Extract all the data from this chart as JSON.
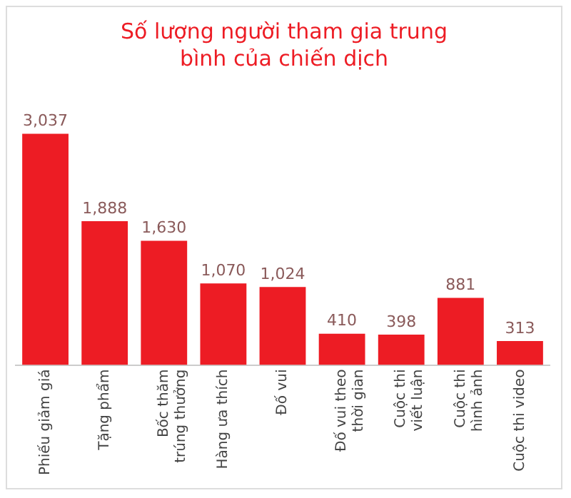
{
  "chart_data": {
    "type": "bar",
    "title": "Số lượng người tham gia trung bình của chiến dịch",
    "categories": [
      "Phiếu giảm giá",
      "Tặng phẩm",
      "Bốc thăm trúng thưởng",
      "Hàng ưa thích",
      "Đố vui",
      "Đố vui theo thời gian",
      "Cuộc thi viết luận",
      "Cuộc thi hình ảnh",
      "Cuộc thi video"
    ],
    "values": [
      3037,
      1888,
      1630,
      1070,
      1024,
      410,
      398,
      881,
      313
    ],
    "value_labels": [
      "3,037",
      "1,888",
      "1,630",
      "1,070",
      "1,024",
      "410",
      "398",
      "881",
      "313"
    ],
    "color": "#ed1c24"
  }
}
